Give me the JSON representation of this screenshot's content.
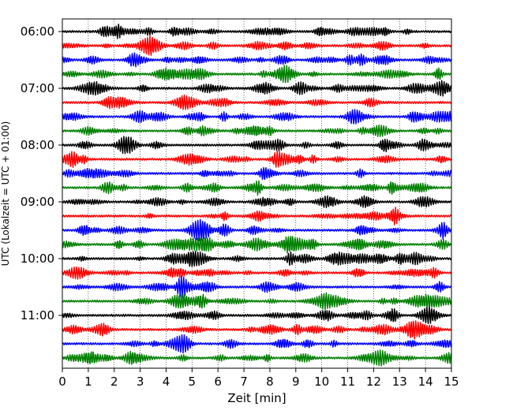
{
  "chart_data": {
    "type": "line",
    "title": "",
    "xlabel": "Zeit  [min]",
    "ylabel": "UTC (Lokalzeit = UTC + 01:00)",
    "xlim": [
      0,
      15
    ],
    "x_ticks": [
      "0",
      "1",
      "2",
      "3",
      "4",
      "5",
      "6",
      "7",
      "8",
      "9",
      "10",
      "11",
      "12",
      "13",
      "14",
      "15"
    ],
    "y_tick_labels": [
      "06:00",
      "07:00",
      "08:00",
      "09:00",
      "10:00",
      "11:00"
    ],
    "y_tick_rows": [
      0,
      4,
      8,
      12,
      16,
      20
    ],
    "row_count": 24,
    "row_interval_min": 15,
    "start_time": "06:00",
    "series_colors": [
      "#000000",
      "#ff0000",
      "#0000ff",
      "#008000"
    ],
    "grid": "vertical dotted"
  }
}
